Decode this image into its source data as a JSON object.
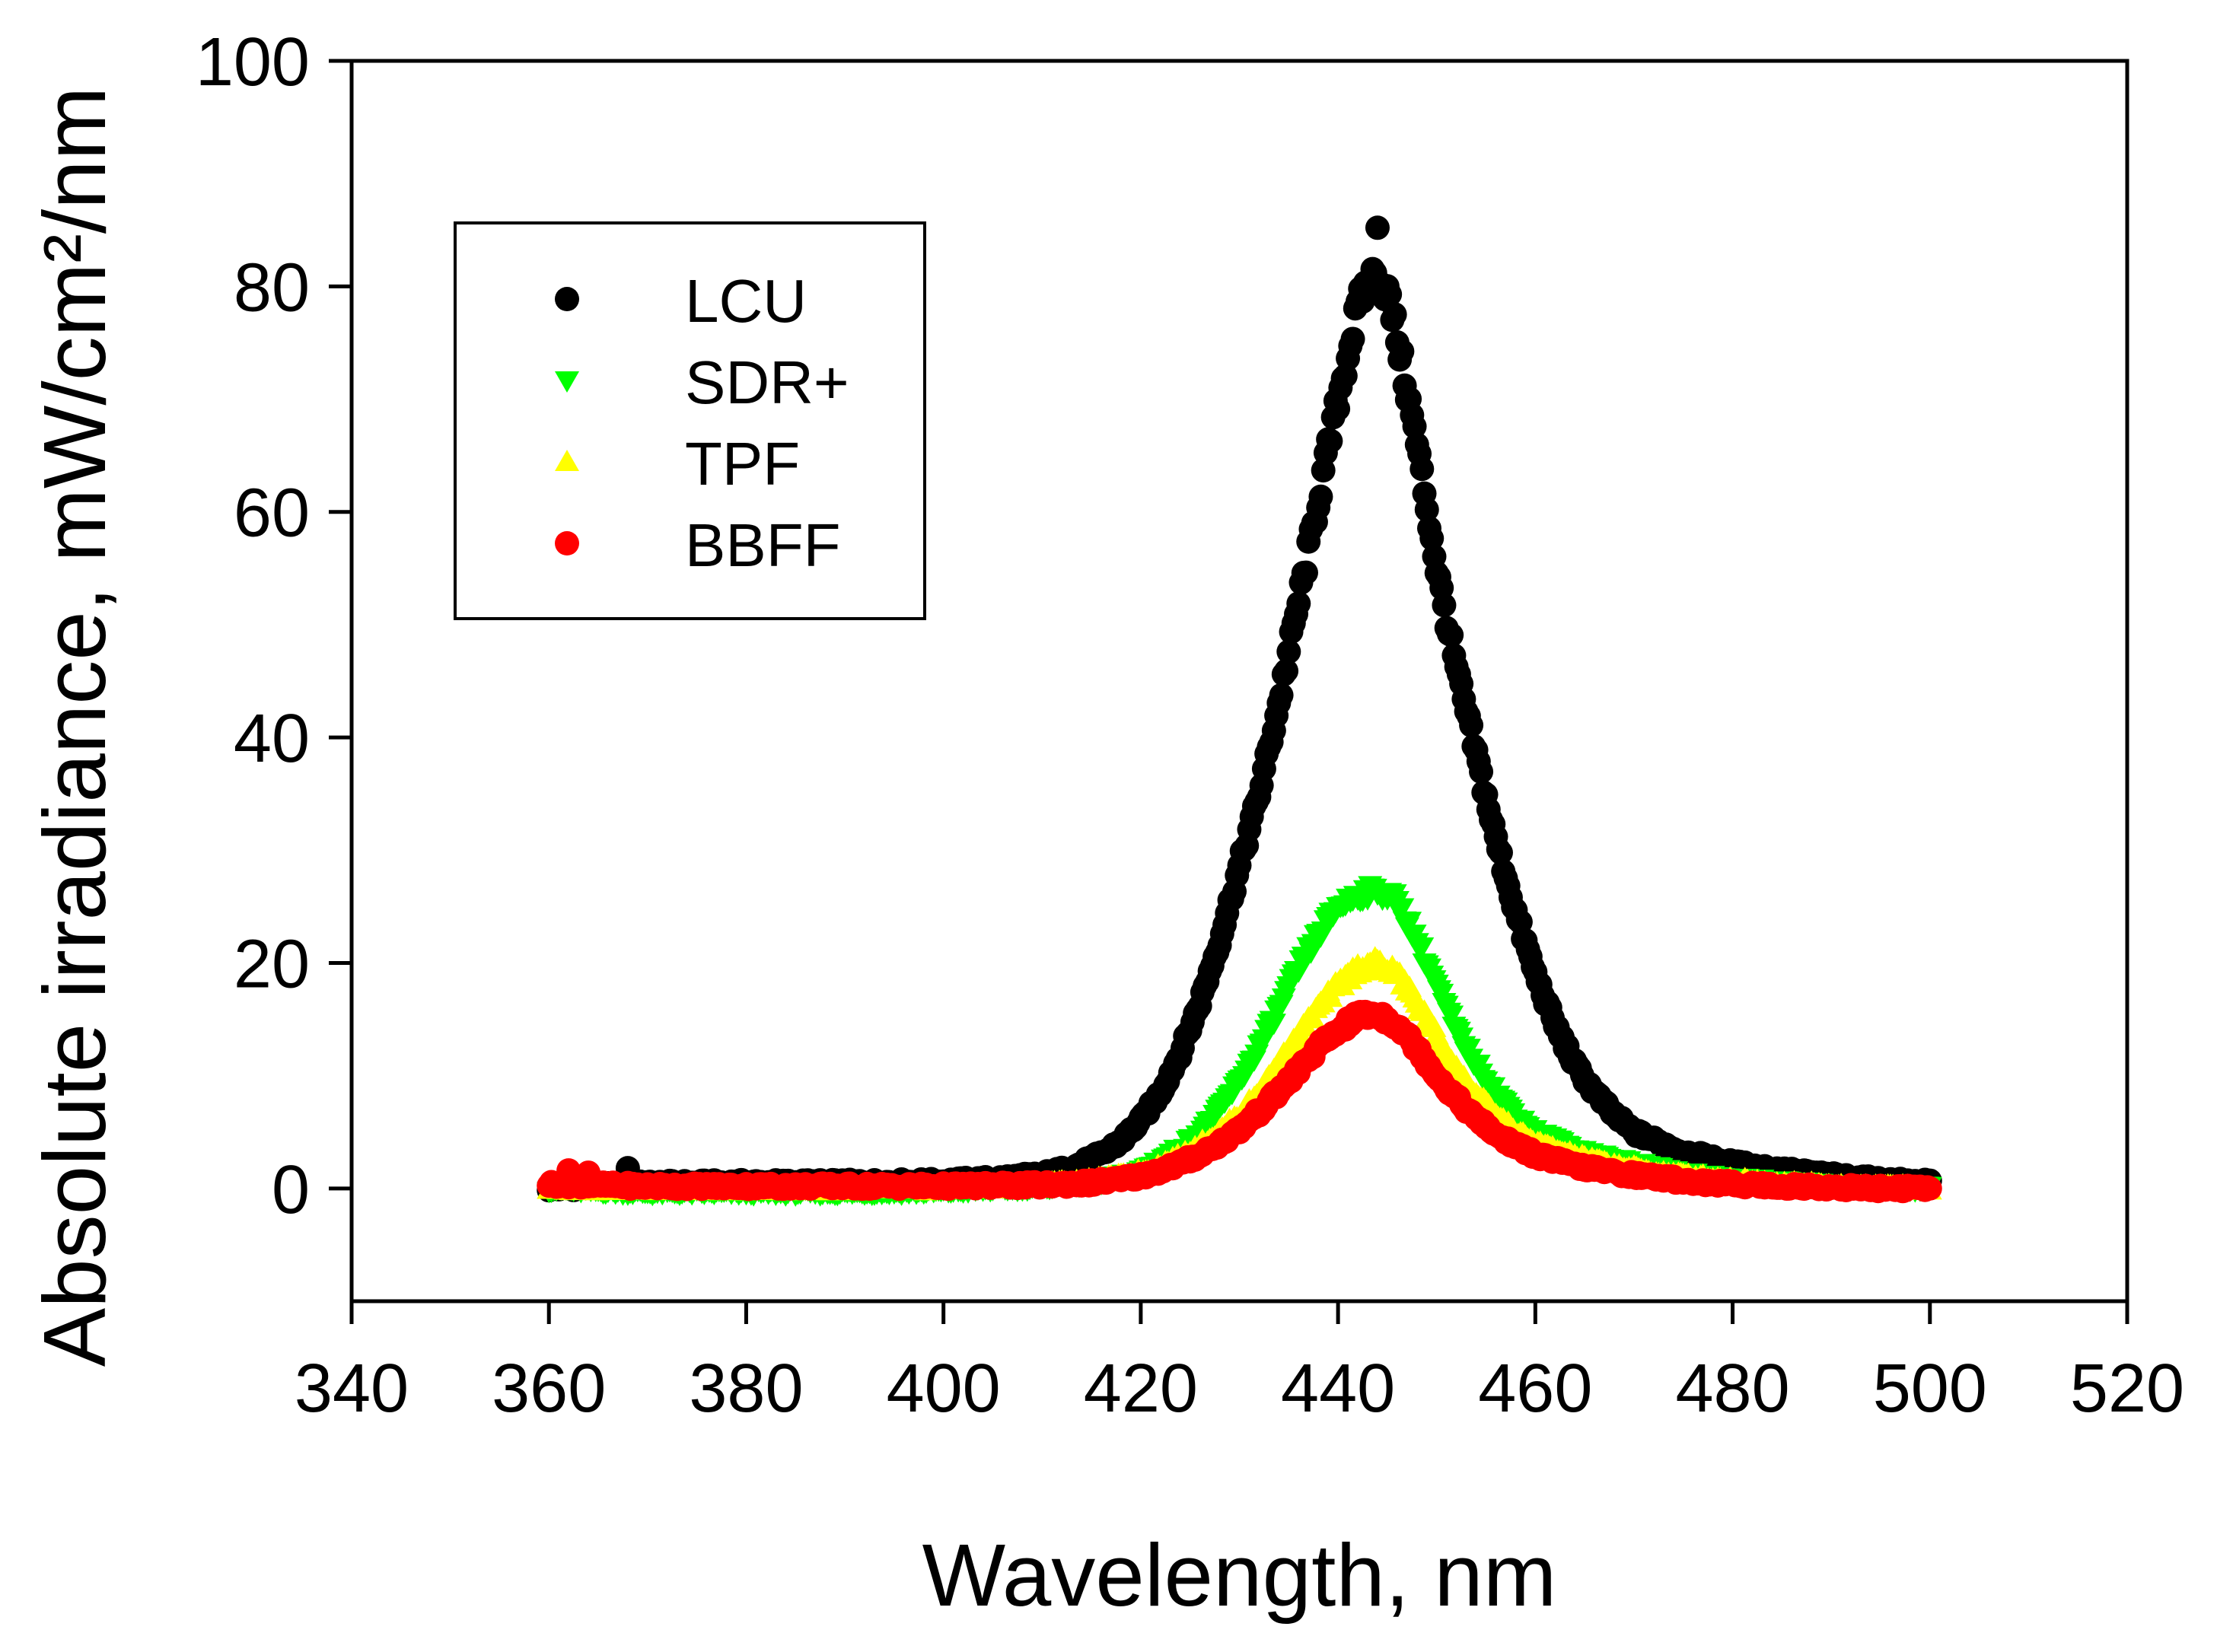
{
  "chart_data": {
    "type": "scatter",
    "title": "",
    "xlabel": "Wavelength, nm",
    "ylabel": "Absolute irradiance, mW/cm²/nm",
    "xlim": [
      340,
      520
    ],
    "ylim": [
      -10,
      100
    ],
    "xticks": [
      340,
      360,
      380,
      400,
      420,
      440,
      460,
      480,
      500,
      520
    ],
    "yticks": [
      0,
      20,
      40,
      60,
      80,
      100
    ],
    "grid": false,
    "legend_position": "upper-left",
    "x_range": [
      360,
      500
    ],
    "series": [
      {
        "name": "LCU",
        "marker": "circle",
        "color": "#000000",
        "points": [
          [
            360,
            0
          ],
          [
            370,
            0.4
          ],
          [
            380,
            0.5
          ],
          [
            390,
            0.5
          ],
          [
            400,
            0.6
          ],
          [
            405,
            0.8
          ],
          [
            410,
            1.2
          ],
          [
            413,
            1.8
          ],
          [
            416,
            3.0
          ],
          [
            418,
            4.2
          ],
          [
            420,
            6.0
          ],
          [
            422,
            8.5
          ],
          [
            424,
            12.0
          ],
          [
            426,
            16.5
          ],
          [
            428,
            22.0
          ],
          [
            430,
            28.5
          ],
          [
            432,
            35.0
          ],
          [
            434,
            43.0
          ],
          [
            436,
            52.0
          ],
          [
            438,
            61.0
          ],
          [
            440,
            70.0
          ],
          [
            442,
            78.0
          ],
          [
            443,
            80.5
          ],
          [
            444,
            81.0
          ],
          [
            445,
            79.5
          ],
          [
            446,
            75.5
          ],
          [
            448,
            66.0
          ],
          [
            450,
            55.0
          ],
          [
            452,
            46.0
          ],
          [
            454,
            38.5
          ],
          [
            456,
            31.0
          ],
          [
            458,
            24.5
          ],
          [
            460,
            19.0
          ],
          [
            462,
            14.5
          ],
          [
            464,
            11.0
          ],
          [
            466,
            8.5
          ],
          [
            468,
            6.5
          ],
          [
            470,
            5.0
          ],
          [
            475,
            3.2
          ],
          [
            480,
            2.2
          ],
          [
            485,
            1.6
          ],
          [
            490,
            1.1
          ],
          [
            495,
            0.7
          ],
          [
            500,
            0.5
          ]
        ],
        "outliers": [
          [
            444,
            85.2
          ],
          [
            368,
            1.8
          ]
        ]
      },
      {
        "name": "SDR+",
        "marker": "triangle-down",
        "color": "#00ff00",
        "points": [
          [
            360,
            0
          ],
          [
            370,
            -0.3
          ],
          [
            380,
            -0.3
          ],
          [
            390,
            -0.3
          ],
          [
            400,
            -0.2
          ],
          [
            410,
            0.2
          ],
          [
            415,
            0.5
          ],
          [
            418,
            1.0
          ],
          [
            420,
            1.5
          ],
          [
            422,
            2.5
          ],
          [
            424,
            3.5
          ],
          [
            426,
            5.0
          ],
          [
            428,
            7.0
          ],
          [
            430,
            9.5
          ],
          [
            432,
            12.5
          ],
          [
            434,
            16.0
          ],
          [
            436,
            19.5
          ],
          [
            438,
            22.5
          ],
          [
            440,
            25.0
          ],
          [
            442,
            26.0
          ],
          [
            444,
            26.5
          ],
          [
            446,
            25.5
          ],
          [
            448,
            22.0
          ],
          [
            450,
            18.0
          ],
          [
            452,
            14.0
          ],
          [
            454,
            11.0
          ],
          [
            456,
            8.5
          ],
          [
            458,
            6.5
          ],
          [
            460,
            5.0
          ],
          [
            464,
            3.5
          ],
          [
            468,
            2.5
          ],
          [
            472,
            1.8
          ],
          [
            476,
            1.2
          ],
          [
            480,
            0.8
          ],
          [
            485,
            0.5
          ],
          [
            490,
            0.2
          ],
          [
            495,
            0.1
          ],
          [
            500,
            0
          ]
        ],
        "outliers": []
      },
      {
        "name": "TPF",
        "marker": "triangle-up",
        "color": "#ffff00",
        "points": [
          [
            360,
            0
          ],
          [
            370,
            0
          ],
          [
            380,
            0
          ],
          [
            390,
            0
          ],
          [
            400,
            0
          ],
          [
            410,
            0.3
          ],
          [
            415,
            0.6
          ],
          [
            418,
            1.0
          ],
          [
            420,
            1.4
          ],
          [
            422,
            2.0
          ],
          [
            424,
            2.8
          ],
          [
            426,
            3.8
          ],
          [
            428,
            5.0
          ],
          [
            430,
            6.5
          ],
          [
            432,
            8.5
          ],
          [
            434,
            11.0
          ],
          [
            436,
            13.5
          ],
          [
            438,
            16.0
          ],
          [
            440,
            18.0
          ],
          [
            442,
            19.5
          ],
          [
            444,
            20.0
          ],
          [
            446,
            19.0
          ],
          [
            448,
            16.5
          ],
          [
            450,
            13.5
          ],
          [
            452,
            10.5
          ],
          [
            454,
            8.3
          ],
          [
            456,
            6.5
          ],
          [
            458,
            5.0
          ],
          [
            460,
            4.0
          ],
          [
            464,
            2.8
          ],
          [
            468,
            2.0
          ],
          [
            472,
            1.4
          ],
          [
            476,
            1.0
          ],
          [
            480,
            0.7
          ],
          [
            485,
            0.4
          ],
          [
            490,
            0.2
          ],
          [
            495,
            0.1
          ],
          [
            500,
            0
          ]
        ],
        "outliers": []
      },
      {
        "name": "BBFF",
        "marker": "circle",
        "color": "#ff0000",
        "points": [
          [
            360,
            0.4
          ],
          [
            370,
            0.2
          ],
          [
            380,
            0.2
          ],
          [
            390,
            0.2
          ],
          [
            400,
            0.2
          ],
          [
            410,
            0.3
          ],
          [
            415,
            0.5
          ],
          [
            418,
            0.8
          ],
          [
            420,
            1.1
          ],
          [
            422,
            1.6
          ],
          [
            424,
            2.2
          ],
          [
            426,
            3.0
          ],
          [
            428,
            4.0
          ],
          [
            430,
            5.2
          ],
          [
            432,
            6.8
          ],
          [
            434,
            8.6
          ],
          [
            436,
            10.5
          ],
          [
            438,
            12.5
          ],
          [
            440,
            14.0
          ],
          [
            442,
            15.3
          ],
          [
            444,
            15.5
          ],
          [
            446,
            14.5
          ],
          [
            448,
            12.5
          ],
          [
            450,
            10.0
          ],
          [
            452,
            8.0
          ],
          [
            454,
            6.2
          ],
          [
            456,
            4.8
          ],
          [
            458,
            3.8
          ],
          [
            460,
            3.0
          ],
          [
            464,
            2.0
          ],
          [
            468,
            1.4
          ],
          [
            472,
            1.0
          ],
          [
            476,
            0.6
          ],
          [
            480,
            0.4
          ],
          [
            485,
            0.2
          ],
          [
            490,
            0.1
          ],
          [
            495,
            0
          ],
          [
            500,
            0
          ]
        ],
        "outliers": [
          [
            362,
            1.6
          ],
          [
            364,
            1.4
          ]
        ]
      }
    ]
  }
}
